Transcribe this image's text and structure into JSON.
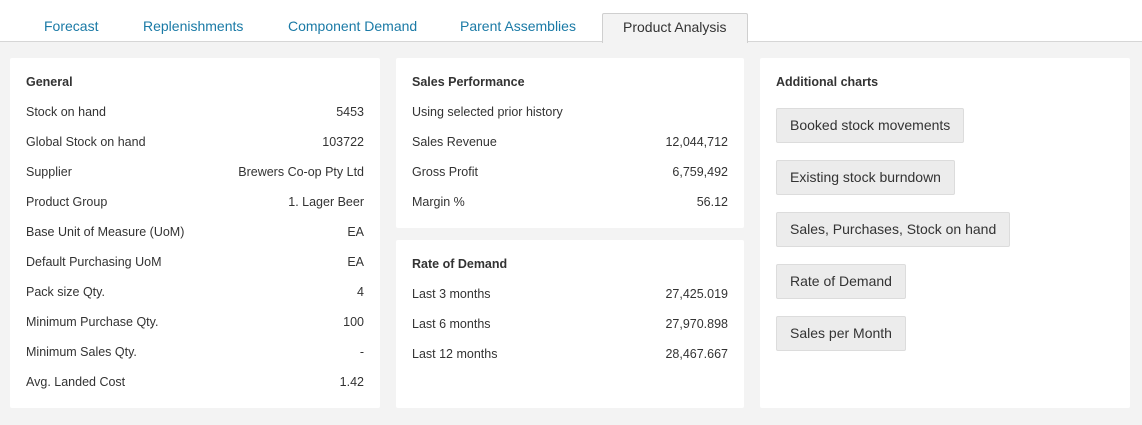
{
  "tabs": [
    {
      "label": "Forecast",
      "active": false
    },
    {
      "label": "Replenishments",
      "active": false
    },
    {
      "label": "Component Demand",
      "active": false
    },
    {
      "label": "Parent Assemblies",
      "active": false
    },
    {
      "label": "Product Analysis",
      "active": true
    }
  ],
  "general": {
    "title": "General",
    "rows": [
      {
        "label": "Stock on hand",
        "value": "5453"
      },
      {
        "label": "Global Stock on hand",
        "value": "103722"
      },
      {
        "label": "Supplier",
        "value": "Brewers Co-op Pty Ltd"
      },
      {
        "label": "Product Group",
        "value": "1. Lager Beer"
      },
      {
        "label": "Base Unit of Measure (UoM)",
        "value": "EA"
      },
      {
        "label": "Default Purchasing UoM",
        "value": "EA"
      },
      {
        "label": "Pack size Qty.",
        "value": "4"
      },
      {
        "label": "Minimum Purchase Qty.",
        "value": "100"
      },
      {
        "label": "Minimum Sales Qty.",
        "value": "-"
      },
      {
        "label": "Avg. Landed Cost",
        "value": "1.42"
      }
    ]
  },
  "sales_performance": {
    "title": "Sales Performance",
    "note": "Using selected prior history",
    "rows": [
      {
        "label": "Sales Revenue",
        "value": "12,044,712"
      },
      {
        "label": "Gross Profit",
        "value": "6,759,492"
      },
      {
        "label": "Margin %",
        "value": "56.12"
      }
    ]
  },
  "rate_of_demand": {
    "title": "Rate of Demand",
    "rows": [
      {
        "label": "Last 3 months",
        "value": "27,425.019"
      },
      {
        "label": "Last 6 months",
        "value": "27,970.898"
      },
      {
        "label": "Last 12 months",
        "value": "28,467.667"
      }
    ]
  },
  "additional_charts": {
    "title": "Additional charts",
    "buttons": [
      "Booked stock movements",
      "Existing stock burndown",
      "Sales, Purchases, Stock on hand",
      "Rate of Demand",
      "Sales per Month"
    ]
  }
}
